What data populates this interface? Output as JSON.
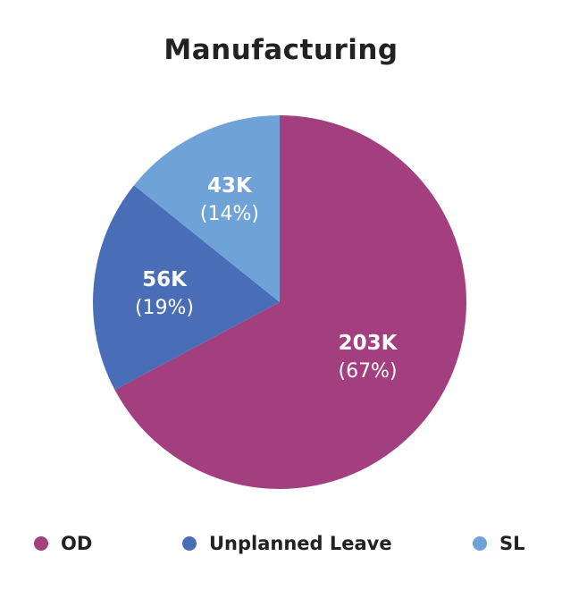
{
  "chart_data": {
    "type": "pie",
    "title": "Manufacturing",
    "slices": [
      {
        "name": "OD",
        "value": 203,
        "value_label": "203K",
        "percent_label": "(67%)",
        "color": "#a33f7e"
      },
      {
        "name": "Unplanned Leave",
        "value": 56,
        "value_label": "56K",
        "percent_label": "(19%)",
        "color": "#4a6db8"
      },
      {
        "name": "SL",
        "value": 43,
        "value_label": "43K",
        "percent_label": "(14%)",
        "color": "#6fa3d8"
      }
    ],
    "legend_position": "bottom"
  }
}
